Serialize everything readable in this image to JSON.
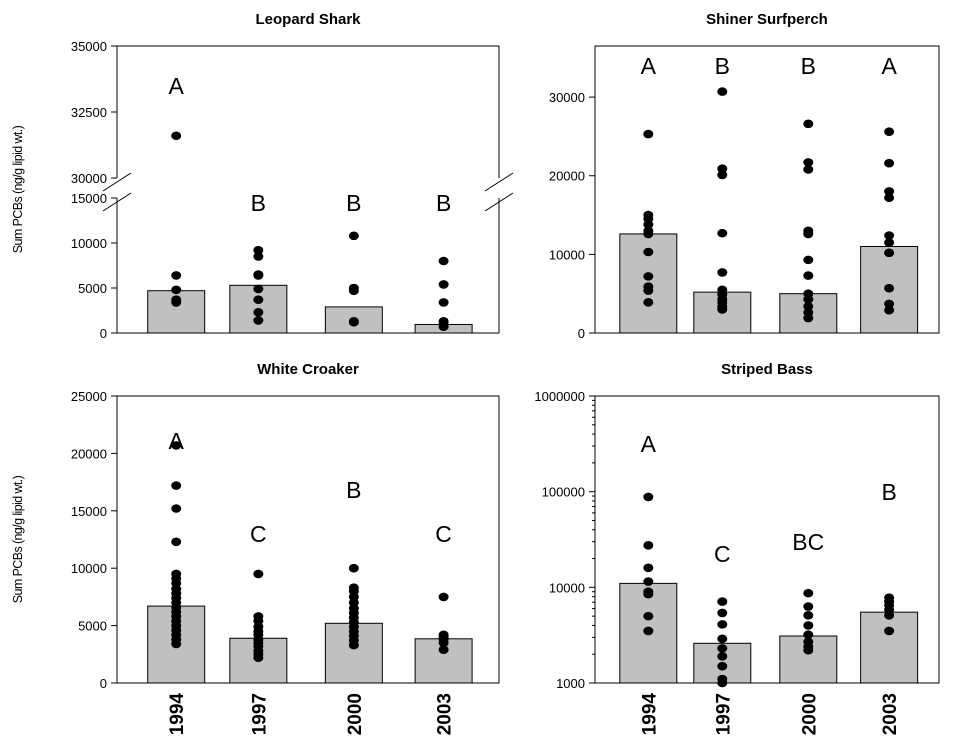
{
  "chart_data": [
    {
      "type": "bar",
      "title": "Leopard Shark",
      "ylabel": "Sum PCBs (ng/g lipid wt.)",
      "categories": [
        "1994",
        "1997",
        "2000",
        "2003"
      ],
      "broken_axis": true,
      "lower_ylim": [
        0,
        15000
      ],
      "lower_yticks": [
        0,
        5000,
        10000,
        15000
      ],
      "upper_ylim": [
        30000,
        35000
      ],
      "upper_yticks": [
        30000,
        32500,
        35000
      ],
      "values": [
        4700,
        5300,
        2900,
        950
      ],
      "points": [
        [
          31600,
          6400,
          4800,
          3700,
          3400
        ],
        [
          9200,
          8500,
          6500,
          6400,
          4900,
          3700,
          2300,
          1400
        ],
        [
          10800,
          5000,
          4700,
          1300,
          1200
        ],
        [
          8000,
          5400,
          3400,
          1300,
          1000,
          700
        ]
      ],
      "letters": [
        "A",
        "B",
        "B",
        "B"
      ]
    },
    {
      "type": "bar",
      "title": "Shiner Surfperch",
      "ylabel": "",
      "categories": [
        "1994",
        "1997",
        "2000",
        "2003"
      ],
      "ylim": [
        0,
        36500
      ],
      "yticks": [
        0,
        10000,
        20000,
        30000
      ],
      "values": [
        12600,
        5200,
        5000,
        11000
      ],
      "points": [
        [
          25300,
          15000,
          14500,
          13800,
          13000,
          12600,
          10300,
          7200,
          5900,
          5400,
          3900
        ],
        [
          30700,
          20900,
          20100,
          12700,
          7700,
          5500,
          4900,
          4300,
          3900,
          3400,
          3000
        ],
        [
          26600,
          21700,
          20800,
          13000,
          12600,
          9300,
          7300,
          5000,
          4300,
          3400,
          2600,
          1900
        ],
        [
          25600,
          21600,
          18000,
          17200,
          12400,
          11500,
          10200,
          5700,
          3700,
          2900
        ]
      ],
      "letters": [
        "A",
        "B",
        "B",
        "A"
      ]
    },
    {
      "type": "bar",
      "title": "White Croaker",
      "ylabel": "Sum PCBs (ng/g lipid wt.)",
      "categories": [
        "1994",
        "1997",
        "2000",
        "2003"
      ],
      "ylim": [
        0,
        25000
      ],
      "yticks": [
        0,
        5000,
        10000,
        15000,
        20000,
        25000
      ],
      "values": [
        6700,
        3900,
        5200,
        3850
      ],
      "points": [
        [
          20700,
          17200,
          15200,
          12300,
          9500,
          9100,
          8700,
          8200,
          7800,
          7400,
          7000,
          6600,
          6200,
          5800,
          5400,
          5000,
          4600,
          4200,
          3800,
          3400
        ],
        [
          9500,
          5800,
          5400,
          4900,
          4500,
          4200,
          3800,
          3500,
          3200,
          2800,
          2500,
          2200
        ],
        [
          10000,
          8300,
          8000,
          7500,
          7000,
          6500,
          6100,
          5700,
          5300,
          4900,
          4500,
          4100,
          3700,
          3300
        ],
        [
          7500,
          4200,
          4000,
          3800,
          3500,
          2900
        ]
      ],
      "letters": [
        "A",
        "C",
        "B",
        "C"
      ]
    },
    {
      "type": "bar",
      "title": "Striped Bass",
      "ylabel": "",
      "categories": [
        "1994",
        "1997",
        "2000",
        "2003"
      ],
      "yscale": "log",
      "ylim": [
        1000,
        1000000
      ],
      "yticks": [
        1000,
        10000,
        100000,
        1000000
      ],
      "values": [
        11000,
        2600,
        3100,
        5500
      ],
      "points": [
        [
          88000,
          27500,
          16000,
          11500,
          9000,
          8500,
          5000,
          3500
        ],
        [
          7100,
          5400,
          4100,
          2900,
          2300,
          1900,
          1500,
          1100,
          1000
        ],
        [
          8700,
          6300,
          5100,
          4000,
          3200,
          2700,
          2400,
          2200
        ],
        [
          7800,
          7100,
          6500,
          5800,
          5100,
          3500
        ]
      ],
      "letters": [
        "A",
        "C",
        "BC",
        "B"
      ]
    }
  ]
}
